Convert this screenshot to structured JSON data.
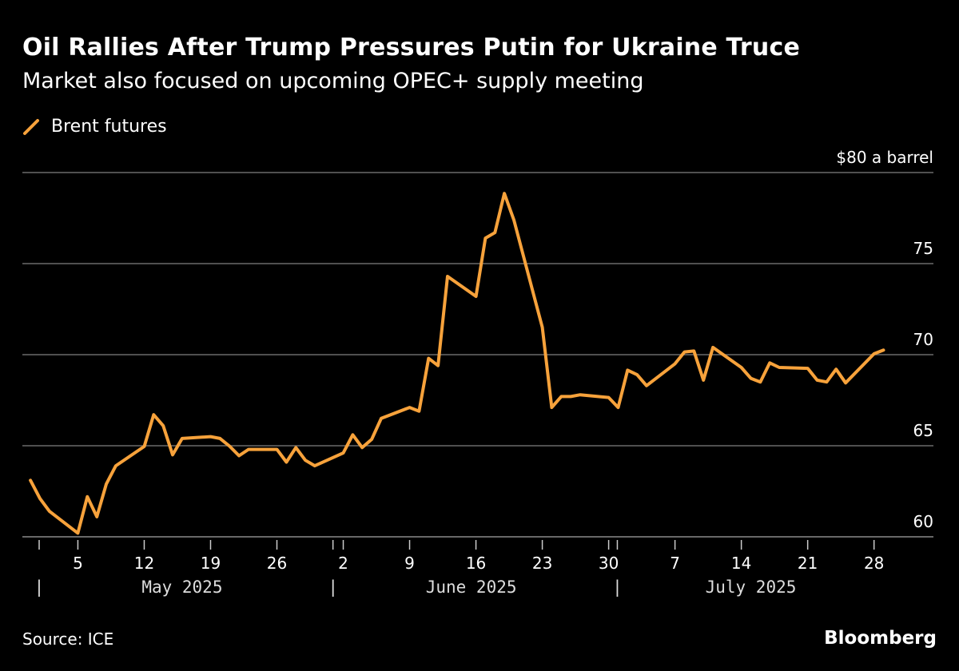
{
  "title": "Oil Rallies After Trump Pressures Putin for Ukraine Truce",
  "subtitle": "Market also focused on upcoming OPEC+ supply meeting",
  "source": "Source: ICE",
  "logo": "Bloomberg",
  "colors": {
    "series": "#f7a23b",
    "grid": "#6b6b6b",
    "background": "#000000",
    "text": "#ffffff"
  },
  "chart_data": {
    "type": "line",
    "title": "Oil Rallies After Trump Pressures Putin for Ukraine Truce",
    "subtitle": "Market also focused on upcoming OPEC+ supply meeting",
    "ylabel": "$80 a barrel",
    "ylim": [
      60,
      80
    ],
    "yticks": [
      60,
      65,
      70,
      75,
      80
    ],
    "ytick_labels": [
      "60",
      "65",
      "70",
      "75",
      "$80 a barrel"
    ],
    "xlim": [
      "2025-04-30",
      "2025-07-29"
    ],
    "xtick_dates": [
      "2025-05-05",
      "2025-05-12",
      "2025-05-19",
      "2025-05-26",
      "2025-06-02",
      "2025-06-09",
      "2025-06-16",
      "2025-06-23",
      "2025-06-30",
      "2025-07-07",
      "2025-07-14",
      "2025-07-21",
      "2025-07-28"
    ],
    "xtick_labels": [
      "5",
      "12",
      "19",
      "26",
      "2",
      "9",
      "16",
      "23",
      "30",
      "7",
      "14",
      "21",
      "28"
    ],
    "months": [
      {
        "label": "May 2025",
        "start": "2025-05-01",
        "end": "2025-05-31"
      },
      {
        "label": "June 2025",
        "start": "2025-06-01",
        "end": "2025-06-30"
      },
      {
        "label": "July 2025",
        "start": "2025-07-01",
        "end": "2025-07-29"
      }
    ],
    "month_separator": "|",
    "grid": true,
    "legend": "top-left",
    "series": [
      {
        "name": "Brent futures",
        "x": [
          "2025-04-30",
          "2025-05-01",
          "2025-05-02",
          "2025-05-05",
          "2025-05-06",
          "2025-05-07",
          "2025-05-08",
          "2025-05-09",
          "2025-05-12",
          "2025-05-13",
          "2025-05-14",
          "2025-05-15",
          "2025-05-16",
          "2025-05-19",
          "2025-05-20",
          "2025-05-21",
          "2025-05-22",
          "2025-05-23",
          "2025-05-26",
          "2025-05-27",
          "2025-05-28",
          "2025-05-29",
          "2025-05-30",
          "2025-06-02",
          "2025-06-03",
          "2025-06-04",
          "2025-06-05",
          "2025-06-06",
          "2025-06-09",
          "2025-06-10",
          "2025-06-11",
          "2025-06-12",
          "2025-06-13",
          "2025-06-16",
          "2025-06-17",
          "2025-06-18",
          "2025-06-19",
          "2025-06-20",
          "2025-06-23",
          "2025-06-24",
          "2025-06-25",
          "2025-06-26",
          "2025-06-27",
          "2025-06-30",
          "2025-07-01",
          "2025-07-02",
          "2025-07-03",
          "2025-07-04",
          "2025-07-07",
          "2025-07-08",
          "2025-07-09",
          "2025-07-10",
          "2025-07-11",
          "2025-07-14",
          "2025-07-15",
          "2025-07-16",
          "2025-07-17",
          "2025-07-18",
          "2025-07-21",
          "2025-07-22",
          "2025-07-23",
          "2025-07-24",
          "2025-07-25",
          "2025-07-28",
          "2025-07-29"
        ],
        "y": [
          63.1,
          62.1,
          61.4,
          60.2,
          62.2,
          61.1,
          62.9,
          63.9,
          64.96,
          66.7,
          66.1,
          64.5,
          65.4,
          65.5,
          65.4,
          64.98,
          64.45,
          64.8,
          64.8,
          64.1,
          64.9,
          64.2,
          63.9,
          64.6,
          65.6,
          64.9,
          65.35,
          66.5,
          67.1,
          66.9,
          69.8,
          69.4,
          74.3,
          73.2,
          76.4,
          76.7,
          78.85,
          77.4,
          71.5,
          67.1,
          67.7,
          67.7,
          67.8,
          67.65,
          67.1,
          69.15,
          68.9,
          68.3,
          69.5,
          70.15,
          70.2,
          68.6,
          70.4,
          69.3,
          68.7,
          68.5,
          69.55,
          69.3,
          69.25,
          68.6,
          68.5,
          69.2,
          68.45,
          70.05,
          70.25
        ]
      }
    ]
  }
}
